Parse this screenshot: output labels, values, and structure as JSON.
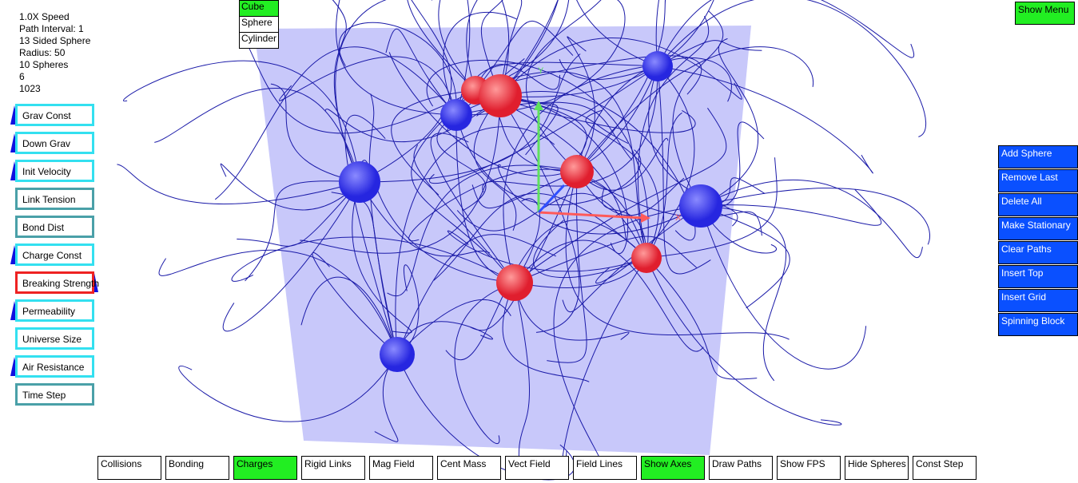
{
  "status": {
    "lines": [
      "1.0X Speed",
      "Path Interval: 1",
      "13 Sided Sphere",
      "Radius: 50",
      "10 Spheres",
      "6",
      "1023"
    ]
  },
  "shape_menu": [
    {
      "label": "Cube",
      "active": true
    },
    {
      "label": "Sphere",
      "active": false
    },
    {
      "label": "Cylinder",
      "active": false
    }
  ],
  "show_menu": "Show Menu",
  "sliders": [
    "Grav Const",
    "Down Grav",
    "Init Velocity",
    "Link Tension",
    "Bond Dist",
    "Charge Const",
    "Breaking Strength",
    "Permeability",
    "Universe Size",
    "Air Resistance",
    "Time Step"
  ],
  "actions": [
    "Add Sphere",
    "Remove Last",
    "Delete All",
    "Make Stationary",
    "Clear Paths",
    "Insert Top",
    "Insert Grid",
    "Spinning Block"
  ],
  "toggles": [
    {
      "label": "Collisions",
      "active": false
    },
    {
      "label": "Bonding",
      "active": false
    },
    {
      "label": "Charges",
      "active": true
    },
    {
      "label": "Rigid Links",
      "active": false
    },
    {
      "label": "Mag Field",
      "active": false
    },
    {
      "label": "Cent Mass",
      "active": false
    },
    {
      "label": "Vect Field",
      "active": false
    },
    {
      "label": "Field Lines",
      "active": false
    },
    {
      "label": "Show Axes",
      "active": true
    },
    {
      "label": "Draw Paths",
      "active": false
    },
    {
      "label": "Show FPS",
      "active": false
    },
    {
      "label": "Hide Spheres",
      "active": false
    },
    {
      "label": "Const Step",
      "active": false
    }
  ],
  "axes": {
    "x": "X",
    "y": "Y"
  }
}
